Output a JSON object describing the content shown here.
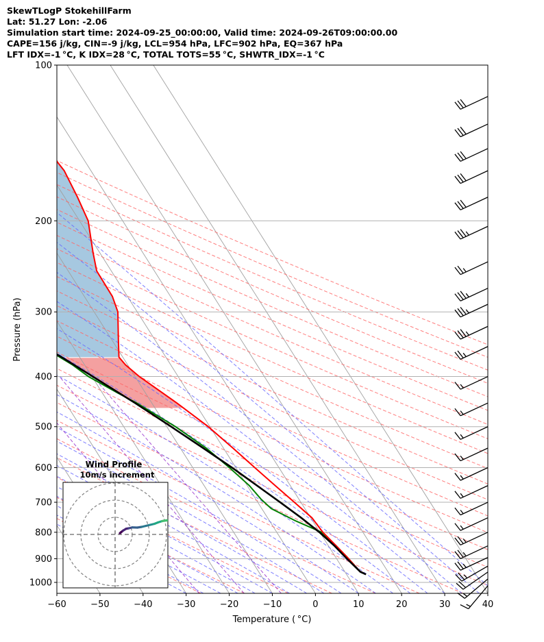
{
  "header": {
    "line1": "SkewTLogP StokehillFarm",
    "line2": "Lat: 51.27   Lon: -2.06",
    "line3": "Simulation start time: 2024-09-25_00:00:00, Valid time: 2024-09-26T09:00:00.00",
    "line4": "CAPE=156 j/kg, CIN=-9 j/kg, LCL=954 hPa, LFC=902 hPa, EQ=367 hPa",
    "line5": "LFT IDX=-1 °C, K IDX=28 °C, TOTAL TOTS=55 °C, SHWTR_IDX=-1 °C"
  },
  "colors": {
    "temperature": "#ff0000",
    "dewpoint": "#008000",
    "parcel": "#000000",
    "cape_fill": "#a6c8e0",
    "cin_fill": "#f4a0a0",
    "dry_adiabat": "#ff6666",
    "moist_adiabat": "#6666ff",
    "mixing_ratio": "#9933cc",
    "isotherm": "#a0a0a0"
  },
  "chart_data": {
    "type": "skew-t log-p",
    "xlabel": "Temperature ( °C)",
    "ylabel": "Pressure (hPa)",
    "xlim": [
      -60,
      40
    ],
    "ylim": [
      1050,
      100
    ],
    "x_ticks": [
      "−60",
      "−50",
      "−40",
      "−30",
      "−20",
      "−10",
      "0",
      "10",
      "20",
      "30",
      "40"
    ],
    "y_ticks": [
      {
        "p": 100,
        "label": "100"
      },
      {
        "p": 200,
        "label": "200"
      },
      {
        "p": 300,
        "label": "300"
      },
      {
        "p": 400,
        "label": "400"
      },
      {
        "p": 500,
        "label": "500"
      },
      {
        "p": 600,
        "label": "600"
      },
      {
        "p": 700,
        "label": "700"
      },
      {
        "p": 800,
        "label": "800"
      },
      {
        "p": 900,
        "label": "900"
      },
      {
        "p": 1000,
        "label": "1000"
      }
    ],
    "skew_deg_per_decade": 76,
    "temperature_profile": [
      [
        965,
        14.5
      ],
      [
        950,
        13.5
      ],
      [
        900,
        12.8
      ],
      [
        850,
        11.8
      ],
      [
        800,
        10.7
      ],
      [
        750,
        10.3
      ],
      [
        700,
        8.5
      ],
      [
        650,
        6.5
      ],
      [
        600,
        4.4
      ],
      [
        550,
        2.2
      ],
      [
        500,
        -0.4
      ],
      [
        450,
        -4.2
      ],
      [
        400,
        -9.0
      ],
      [
        380,
        -10.5
      ],
      [
        367,
        -10.9
      ],
      [
        340,
        -8.5
      ],
      [
        300,
        -4.5
      ],
      [
        280,
        -3.5
      ],
      [
        250,
        -3.4
      ],
      [
        230,
        -1.5
      ],
      [
        200,
        2.0
      ],
      [
        180,
        3.0
      ],
      [
        160,
        3.8
      ],
      [
        145,
        3.0
      ],
      [
        130,
        4.2
      ],
      [
        115,
        5.2
      ],
      [
        100,
        5.5
      ]
    ],
    "dewpoint_profile": [
      [
        965,
        14.5
      ],
      [
        950,
        13.5
      ],
      [
        900,
        12.8
      ],
      [
        850,
        11.8
      ],
      [
        800,
        10.4
      ],
      [
        760,
        6.0
      ],
      [
        720,
        2.2
      ],
      [
        690,
        1.2
      ],
      [
        650,
        0.5
      ],
      [
        600,
        -1.5
      ],
      [
        550,
        -4.0
      ],
      [
        500,
        -8.0
      ],
      [
        450,
        -13.5
      ],
      [
        430,
        -16.5
      ],
      [
        400,
        -20.8
      ],
      [
        380,
        -22.8
      ],
      [
        340,
        -28.6
      ],
      [
        310,
        -33.4
      ],
      [
        290,
        -35.6
      ],
      [
        250,
        -37.2
      ],
      [
        225,
        -39.2
      ],
      [
        200,
        -42.5
      ],
      [
        185,
        -47.0
      ],
      [
        175,
        -51.0
      ],
      [
        170,
        -52.2
      ],
      [
        100,
        -56.5
      ]
    ],
    "parcel_profile": [
      [
        965,
        14.5
      ],
      [
        954,
        13.6
      ],
      [
        900,
        12.4
      ],
      [
        850,
        11.4
      ],
      [
        800,
        9.9
      ],
      [
        750,
        7.8
      ],
      [
        700,
        5.2
      ],
      [
        650,
        2.3
      ],
      [
        600,
        -0.9
      ],
      [
        550,
        -4.7
      ],
      [
        500,
        -9.0
      ],
      [
        450,
        -13.9
      ],
      [
        400,
        -19.8
      ],
      [
        367,
        -24.2
      ],
      [
        350,
        -26.9
      ],
      [
        300,
        -35.9
      ],
      [
        250,
        -46.4
      ],
      [
        200,
        -58.6
      ],
      [
        150,
        -72.3
      ],
      [
        100,
        -88.0
      ]
    ],
    "wind_barbs": [
      {
        "p": 1015,
        "speed_kt": 15,
        "dir_deg": 220
      },
      {
        "p": 985,
        "speed_kt": 15,
        "dir_deg": 230
      },
      {
        "p": 955,
        "speed_kt": 20,
        "dir_deg": 235
      },
      {
        "p": 930,
        "speed_kt": 25,
        "dir_deg": 240
      },
      {
        "p": 895,
        "speed_kt": 25,
        "dir_deg": 245
      },
      {
        "p": 850,
        "speed_kt": 25,
        "dir_deg": 245
      },
      {
        "p": 800,
        "speed_kt": 25,
        "dir_deg": 245
      },
      {
        "p": 750,
        "speed_kt": 15,
        "dir_deg": 245
      },
      {
        "p": 700,
        "speed_kt": 15,
        "dir_deg": 245
      },
      {
        "p": 650,
        "speed_kt": 15,
        "dir_deg": 245
      },
      {
        "p": 600,
        "speed_kt": 15,
        "dir_deg": 245
      },
      {
        "p": 550,
        "speed_kt": 15,
        "dir_deg": 245
      },
      {
        "p": 500,
        "speed_kt": 15,
        "dir_deg": 245
      },
      {
        "p": 450,
        "speed_kt": 15,
        "dir_deg": 245
      },
      {
        "p": 400,
        "speed_kt": 15,
        "dir_deg": 245
      },
      {
        "p": 350,
        "speed_kt": 25,
        "dir_deg": 245
      },
      {
        "p": 320,
        "speed_kt": 35,
        "dir_deg": 245
      },
      {
        "p": 290,
        "speed_kt": 35,
        "dir_deg": 245
      },
      {
        "p": 270,
        "speed_kt": 35,
        "dir_deg": 245
      },
      {
        "p": 240,
        "speed_kt": 25,
        "dir_deg": 245
      },
      {
        "p": 205,
        "speed_kt": 35,
        "dir_deg": 245
      },
      {
        "p": 180,
        "speed_kt": 30,
        "dir_deg": 245
      },
      {
        "p": 160,
        "speed_kt": 30,
        "dir_deg": 245
      },
      {
        "p": 145,
        "speed_kt": 30,
        "dir_deg": 245
      },
      {
        "p": 130,
        "speed_kt": 30,
        "dir_deg": 245
      },
      {
        "p": 115,
        "speed_kt": 30,
        "dir_deg": 245
      }
    ],
    "hodograph": {
      "title": "Wind Profile",
      "subtitle": "10m/s increment",
      "ring_count": 3,
      "points": [
        [
          2.8,
          0.7
        ],
        [
          3.6,
          1.4
        ],
        [
          4.6,
          2.2
        ],
        [
          6.4,
          3.3
        ],
        [
          8.0,
          3.6
        ],
        [
          10.0,
          4.1
        ],
        [
          13.0,
          4.0
        ],
        [
          15.5,
          4.4
        ],
        [
          18.0,
          5.0
        ],
        [
          20.5,
          5.6
        ],
        [
          23.0,
          6.2
        ],
        [
          25.0,
          7.0
        ],
        [
          27.5,
          7.8
        ],
        [
          30.0,
          8.2
        ],
        [
          32.5,
          8.0
        ],
        [
          35.0,
          8.6
        ],
        [
          37.5,
          8.8
        ],
        [
          40.0,
          9.6
        ],
        [
          42.0,
          10.5
        ]
      ]
    }
  }
}
